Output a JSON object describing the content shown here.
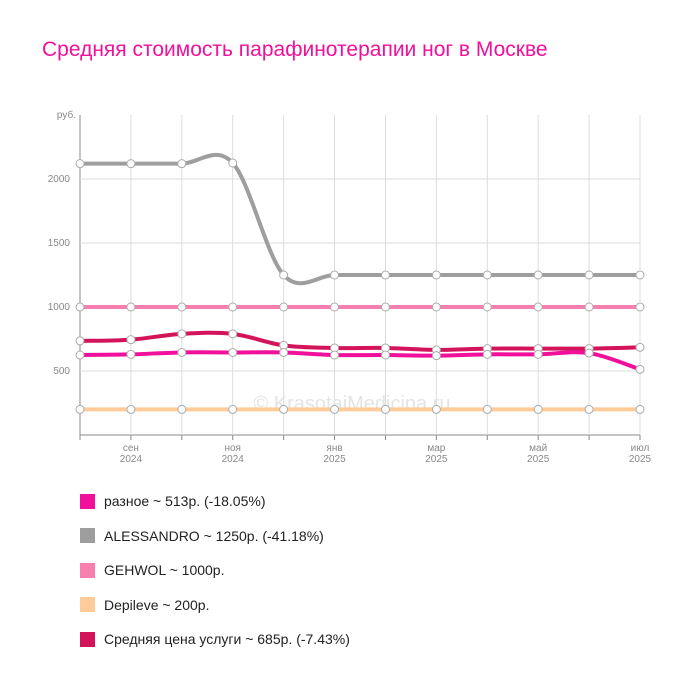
{
  "chart_data": {
    "type": "line",
    "title": "Средняя стоимость парафинотерапии ног в Москве",
    "y_label": "руб.",
    "watermark": "© KrasotaiMedicina.ru",
    "categories": [
      null,
      "сен 2024",
      null,
      "ноя 2024",
      null,
      "янв 2025",
      null,
      "мар 2025",
      null,
      "май 2025",
      null,
      "июл 2025"
    ],
    "ylim": [
      0,
      2500
    ],
    "yticks": [
      500,
      1000,
      1500,
      2000
    ],
    "grid": true,
    "series": [
      {
        "name": "разное",
        "legend": "разное ~ 513р. (-18.05%)",
        "color": "#f0109c",
        "values": [
          625,
          630,
          645,
          645,
          645,
          625,
          625,
          620,
          630,
          630,
          640,
          513
        ]
      },
      {
        "name": "ALESSANDRO",
        "legend": "ALESSANDRO ~ 1250р. (-41.18%)",
        "color": "#9e9e9e",
        "values": [
          2120,
          2120,
          2120,
          2125,
          1250,
          1250,
          1250,
          1250,
          1250,
          1250,
          1250,
          1250
        ]
      },
      {
        "name": "GEHWOL",
        "legend": "GEHWOL ~ 1000р.",
        "color": "#f77fb0",
        "values": [
          1000,
          1000,
          1000,
          1000,
          1000,
          1000,
          1000,
          1000,
          1000,
          1000,
          1000,
          1000
        ]
      },
      {
        "name": "Depileve",
        "legend": "Depileve ~ 200р.",
        "color": "#ffcc99",
        "values": [
          200,
          200,
          200,
          200,
          200,
          200,
          200,
          200,
          200,
          200,
          200,
          200
        ]
      },
      {
        "name": "Средняя цена услуги",
        "legend": "Средняя цена услуги ~ 685р. (-7.43%)",
        "color": "#d4145a",
        "values": [
          735,
          745,
          790,
          790,
          700,
          680,
          680,
          665,
          675,
          675,
          675,
          685
        ]
      }
    ]
  }
}
